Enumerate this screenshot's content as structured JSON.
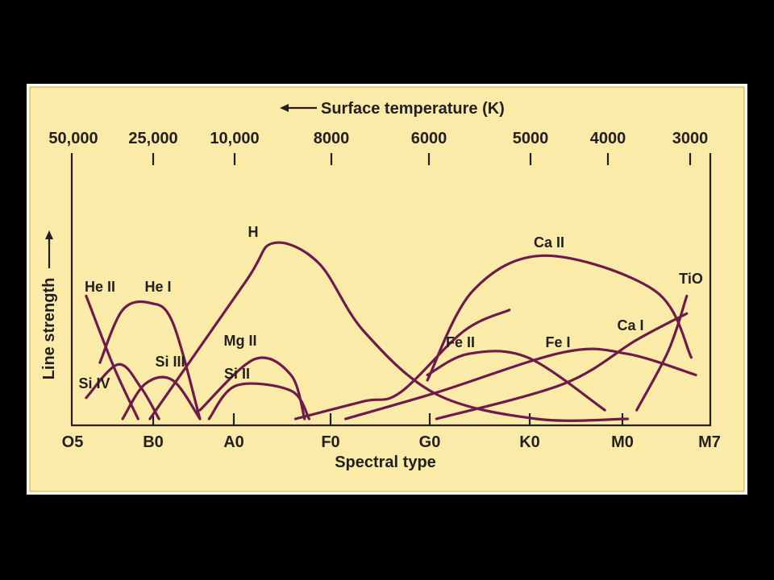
{
  "chart_data": {
    "type": "line",
    "title": "",
    "xlabel": "Spectral type",
    "ylabel": "Line strength",
    "top_axis_label": "Surface temperature (K)",
    "x_categories": [
      "O5",
      "B0",
      "A0",
      "F0",
      "G0",
      "K0",
      "M0",
      "M7"
    ],
    "top_ticks": [
      "50,000",
      "25,000",
      "10,000",
      "8000",
      "6000",
      "5000",
      "4000",
      "3000"
    ],
    "x_range": [
      0,
      7
    ],
    "y_range": [
      0,
      1
    ],
    "grid": false,
    "line_color": "#6e1a4a",
    "background_color": "#fbeba9",
    "series": [
      {
        "name": "He II",
        "points": [
          [
            0.15,
            0.7
          ],
          [
            0.45,
            0.3
          ],
          [
            0.72,
            0.0
          ]
        ]
      },
      {
        "name": "He I",
        "points": [
          [
            0.3,
            0.32
          ],
          [
            0.55,
            0.62
          ],
          [
            0.85,
            0.66
          ],
          [
            1.1,
            0.55
          ],
          [
            1.4,
            0.0
          ]
        ]
      },
      {
        "name": "Si IV",
        "points": [
          [
            0.15,
            0.12
          ],
          [
            0.5,
            0.31
          ],
          [
            0.75,
            0.18
          ],
          [
            0.95,
            0.0
          ]
        ]
      },
      {
        "name": "Si III",
        "points": [
          [
            0.55,
            0.0
          ],
          [
            0.8,
            0.2
          ],
          [
            1.1,
            0.22
          ],
          [
            1.4,
            0.0
          ]
        ]
      },
      {
        "name": "Mg II",
        "points": [
          [
            1.4,
            0.05
          ],
          [
            2.0,
            0.34
          ],
          [
            2.4,
            0.25
          ],
          [
            2.55,
            0.0
          ]
        ]
      },
      {
        "name": "Si II",
        "points": [
          [
            1.5,
            0.0
          ],
          [
            1.8,
            0.19
          ],
          [
            2.4,
            0.16
          ],
          [
            2.6,
            0.0
          ]
        ]
      },
      {
        "name": "H",
        "points": [
          [
            0.85,
            0.0
          ],
          [
            1.9,
            0.78
          ],
          [
            2.2,
            1.0
          ],
          [
            2.7,
            0.89
          ],
          [
            3.2,
            0.5
          ],
          [
            4.0,
            0.14
          ],
          [
            5.1,
            0.0
          ],
          [
            6.1,
            0.0
          ]
        ]
      },
      {
        "name": "Ca II",
        "points": [
          [
            3.9,
            0.22
          ],
          [
            4.4,
            0.73
          ],
          [
            5.2,
            0.93
          ],
          [
            6.4,
            0.73
          ],
          [
            6.8,
            0.35
          ]
        ]
      },
      {
        "name": "Fe II",
        "points": [
          [
            3.9,
            0.25
          ],
          [
            4.35,
            0.37
          ],
          [
            5.0,
            0.35
          ],
          [
            5.85,
            0.05
          ]
        ]
      },
      {
        "name": "Fe I",
        "points": [
          [
            3.0,
            0.0
          ],
          [
            4.0,
            0.15
          ],
          [
            5.4,
            0.38
          ],
          [
            6.1,
            0.37
          ],
          [
            6.85,
            0.25
          ]
        ]
      },
      {
        "name": "Ca I",
        "points": [
          [
            4.0,
            0.0
          ],
          [
            5.4,
            0.2
          ],
          [
            6.2,
            0.45
          ],
          [
            6.75,
            0.6
          ]
        ]
      },
      {
        "name": "TiO",
        "points": [
          [
            6.2,
            0.05
          ],
          [
            6.55,
            0.39
          ],
          [
            6.75,
            0.7
          ]
        ]
      }
    ],
    "extra_lines": [
      {
        "points": [
          [
            2.45,
            0.0
          ],
          [
            3.2,
            0.1
          ],
          [
            3.6,
            0.15
          ],
          [
            4.3,
            0.5
          ],
          [
            4.8,
            0.62
          ]
        ]
      }
    ]
  }
}
